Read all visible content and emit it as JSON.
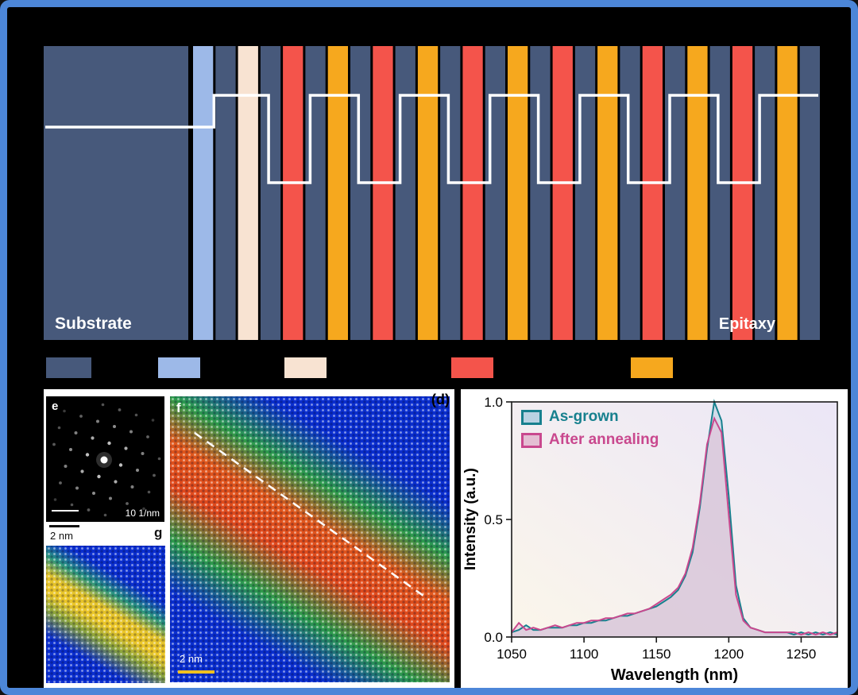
{
  "figure": {
    "border_color": "#4c86d8",
    "background": "#000000"
  },
  "schematic": {
    "substrate_label": "Substrate",
    "epitaxy_label": "Epitaxy",
    "colors": {
      "dark": "#47597b",
      "light_blue": "#9db9e8",
      "cream": "#f8e3d2",
      "red": "#f4544b",
      "orange": "#f6a81e",
      "trace": "#ffffff"
    },
    "stripes": [
      "light_blue",
      "dark",
      "cream",
      "dark",
      "red",
      "dark",
      "orange",
      "dark",
      "red",
      "dark",
      "orange",
      "dark",
      "red",
      "dark",
      "orange",
      "dark",
      "red",
      "dark",
      "orange",
      "dark",
      "red",
      "dark",
      "orange",
      "dark",
      "red",
      "dark",
      "orange",
      "dark"
    ],
    "trace": {
      "substrate_y": 102,
      "barrier_y": 62,
      "well_y": 172
    }
  },
  "legend": {
    "swatch_order": [
      "dark",
      "light_blue",
      "cream",
      "red",
      "orange"
    ]
  },
  "micrographs": {
    "e": {
      "label": "e",
      "scale_label": "10 1/nm"
    },
    "f": {
      "label": "f",
      "scale_label": "2 nm"
    },
    "g": {
      "label": "g",
      "scale_label": "2 nm"
    }
  },
  "panel_d_label": "(d)",
  "chart_data": {
    "type": "area",
    "title": "",
    "xlabel": "Wavelength (nm)",
    "ylabel": "Intensity (a.u.)",
    "xlim": [
      1050,
      1275
    ],
    "ylim": [
      0,
      1.0
    ],
    "xtick_values": [
      1050,
      1100,
      1150,
      1200,
      1250
    ],
    "xtick_labels": [
      "1050",
      "1100",
      "1150",
      "1200",
      "1250"
    ],
    "ytick_values": [
      0,
      0.5,
      1
    ],
    "ytick_labels": [
      "0.0",
      "0.5",
      "1.0"
    ],
    "grid": false,
    "legend_position": "top-left",
    "x": [
      1050,
      1055,
      1060,
      1065,
      1070,
      1075,
      1080,
      1085,
      1090,
      1095,
      1100,
      1105,
      1110,
      1115,
      1120,
      1125,
      1130,
      1135,
      1140,
      1145,
      1150,
      1155,
      1160,
      1165,
      1170,
      1175,
      1180,
      1185,
      1190,
      1195,
      1200,
      1205,
      1210,
      1215,
      1220,
      1225,
      1230,
      1235,
      1240,
      1245,
      1250,
      1255,
      1260,
      1265,
      1270,
      1275
    ],
    "series": [
      {
        "name": "As-grown",
        "line_color": "#17808e",
        "fill_color": "#b9d2e2",
        "values": [
          0.02,
          0.03,
          0.05,
          0.03,
          0.03,
          0.04,
          0.04,
          0.04,
          0.05,
          0.05,
          0.06,
          0.06,
          0.07,
          0.07,
          0.08,
          0.09,
          0.09,
          0.1,
          0.11,
          0.12,
          0.13,
          0.15,
          0.17,
          0.2,
          0.26,
          0.36,
          0.55,
          0.8,
          1.0,
          0.92,
          0.6,
          0.22,
          0.08,
          0.04,
          0.03,
          0.02,
          0.02,
          0.02,
          0.02,
          0.01,
          0.02,
          0.01,
          0.02,
          0.01,
          0.02,
          0.01
        ]
      },
      {
        "name": "After annealing",
        "line_color": "#c9488e",
        "fill_color": "#e4bed3",
        "values": [
          0.02,
          0.06,
          0.03,
          0.04,
          0.03,
          0.04,
          0.05,
          0.04,
          0.05,
          0.06,
          0.06,
          0.07,
          0.07,
          0.08,
          0.08,
          0.09,
          0.1,
          0.1,
          0.11,
          0.12,
          0.14,
          0.16,
          0.18,
          0.21,
          0.27,
          0.38,
          0.57,
          0.82,
          0.93,
          0.87,
          0.52,
          0.18,
          0.07,
          0.04,
          0.03,
          0.02,
          0.02,
          0.02,
          0.02,
          0.02,
          0.01,
          0.02,
          0.01,
          0.02,
          0.01,
          0.02
        ]
      }
    ]
  }
}
